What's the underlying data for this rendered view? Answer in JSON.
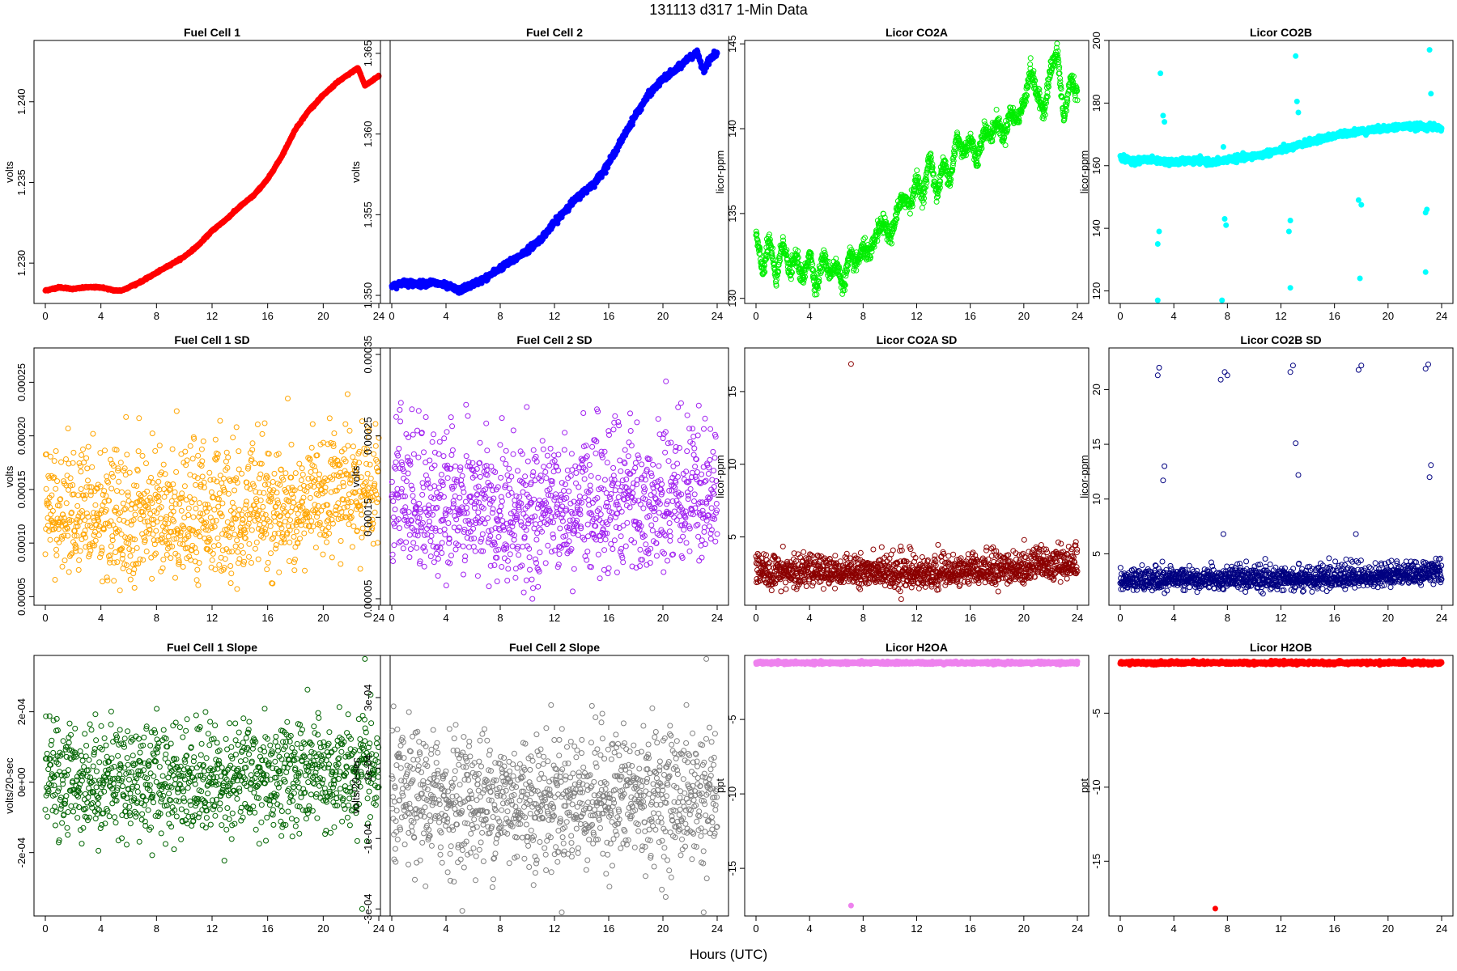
{
  "figure": {
    "title": "131113   d317   1-Min Data",
    "xlabel": "Hours (UTC)"
  },
  "chart_data": [
    {
      "type": "scatter",
      "title": "Fuel Cell 1",
      "ylabel": "volts",
      "color": "#ff0000",
      "filled": true,
      "xlim": [
        0,
        24
      ],
      "xticks": [
        0,
        4,
        8,
        12,
        16,
        20,
        24
      ],
      "ylim": [
        1.2275,
        1.2438
      ],
      "yticks": [
        1.23,
        1.235,
        1.24
      ],
      "ytick_labels": [
        "1.230",
        "1.235",
        "1.240"
      ],
      "series": [
        {
          "x": [
            0,
            1,
            2,
            3,
            4,
            5,
            5.5,
            6,
            7,
            8,
            9,
            10,
            11,
            12,
            13,
            14,
            15,
            16,
            17,
            18,
            19,
            20,
            21,
            22,
            22.5,
            23,
            23.5,
            24
          ],
          "y": [
            1.2283,
            1.2285,
            1.2284,
            1.2285,
            1.2285,
            1.2283,
            1.2283,
            1.2285,
            1.2289,
            1.2294,
            1.2299,
            1.2304,
            1.2311,
            1.232,
            1.2327,
            1.2335,
            1.2342,
            1.2352,
            1.2366,
            1.2383,
            1.2395,
            1.2404,
            1.2412,
            1.2418,
            1.2421,
            1.241,
            1.2413,
            1.2416
          ]
        }
      ]
    },
    {
      "type": "scatter",
      "title": "Fuel Cell 2",
      "ylabel": "volts",
      "color": "#0000ff",
      "filled": true,
      "xlim": [
        0,
        24
      ],
      "xticks": [
        0,
        4,
        8,
        12,
        16,
        20,
        24
      ],
      "ylim": [
        1.3495,
        1.3658
      ],
      "yticks": [
        1.35,
        1.355,
        1.36,
        1.365
      ],
      "ytick_labels": [
        "1.350",
        "1.355",
        "1.360",
        "1.365"
      ],
      "series": [
        {
          "x": [
            0,
            1,
            2,
            3,
            4,
            5,
            6,
            7,
            8,
            9,
            10,
            11,
            12,
            13,
            14,
            15,
            16,
            17,
            18,
            19,
            20,
            21,
            22,
            22.5,
            23,
            23.5,
            24
          ],
          "y": [
            1.3506,
            1.3508,
            1.3507,
            1.3508,
            1.3506,
            1.3503,
            1.3507,
            1.3511,
            1.3517,
            1.3522,
            1.3528,
            1.3535,
            1.3545,
            1.3555,
            1.3563,
            1.357,
            1.3582,
            1.3597,
            1.3612,
            1.3625,
            1.3634,
            1.364,
            1.3648,
            1.365,
            1.364,
            1.3647,
            1.365
          ]
        }
      ]
    },
    {
      "type": "scatter",
      "title": "Licor CO2A",
      "ylabel": "licor-ppm",
      "color": "#00ee00",
      "filled": false,
      "xlim": [
        0,
        24
      ],
      "xticks": [
        0,
        4,
        8,
        12,
        16,
        20,
        24
      ],
      "ylim": [
        129.7,
        145.2
      ],
      "yticks": [
        130,
        135,
        140,
        145
      ],
      "ytick_labels": [
        "130",
        "135",
        "140",
        "145"
      ],
      "series": [
        {
          "x": [
            0,
            0.5,
            1,
            1.5,
            2,
            2.5,
            3,
            3.5,
            4,
            4.5,
            5,
            5.5,
            6,
            6.5,
            7,
            7.5,
            8,
            8.5,
            9,
            9.5,
            10,
            10.5,
            11,
            11.5,
            12,
            12.5,
            13,
            13.5,
            14,
            14.5,
            15,
            15.5,
            16,
            16.5,
            17,
            17.5,
            18,
            18.5,
            19,
            19.5,
            20,
            20.5,
            21,
            21.5,
            22,
            22.5,
            23,
            23.5,
            24
          ],
          "y": [
            133.8,
            131.5,
            133.5,
            131.0,
            133.5,
            131.5,
            132.5,
            131.0,
            132.8,
            130.5,
            132.5,
            131.5,
            132.0,
            130.7,
            132.5,
            132.0,
            133.0,
            132.5,
            133.8,
            134.5,
            133.5,
            135.0,
            136.0,
            135.5,
            137.0,
            136.0,
            138.5,
            136.0,
            138.0,
            137.0,
            139.5,
            138.5,
            139.5,
            138.0,
            140.0,
            139.5,
            140.5,
            139.5,
            141.0,
            140.5,
            141.5,
            143.5,
            142.0,
            141.0,
            143.5,
            144.5,
            140.5,
            143.0,
            142.0
          ]
        }
      ]
    },
    {
      "type": "scatter",
      "title": "Licor CO2B",
      "ylabel": "licor-ppm",
      "color": "#00ffff",
      "filled": true,
      "xlim": [
        0,
        24
      ],
      "xticks": [
        0,
        4,
        8,
        12,
        16,
        20,
        24
      ],
      "ylim": [
        116,
        200
      ],
      "yticks": [
        120,
        140,
        160,
        180,
        200
      ],
      "ytick_labels": [
        "120",
        "140",
        "160",
        "180",
        "200"
      ],
      "series": [
        {
          "x": [
            0,
            1,
            2,
            3,
            4,
            5,
            6,
            7,
            8,
            9,
            10,
            11,
            12,
            13,
            14,
            15,
            16,
            17,
            18,
            19,
            20,
            21,
            22,
            23,
            24
          ],
          "y": [
            162.5,
            161.5,
            162.0,
            161.5,
            161.0,
            161.5,
            161.5,
            161.0,
            162.0,
            162.5,
            163.0,
            164.0,
            165.0,
            166.0,
            167.5,
            168.5,
            169.5,
            170.5,
            171.0,
            171.5,
            172.0,
            172.5,
            172.5,
            172.5,
            172.0
          ]
        }
      ],
      "outliers": [
        {
          "x": 2.8,
          "y": 135.0
        },
        {
          "x": 2.9,
          "y": 139.0
        },
        {
          "x": 2.8,
          "y": 117.0
        },
        {
          "x": 3.0,
          "y": 189.5
        },
        {
          "x": 3.2,
          "y": 176.0
        },
        {
          "x": 3.3,
          "y": 174.0
        },
        {
          "x": 7.6,
          "y": 117.0
        },
        {
          "x": 7.8,
          "y": 143.0
        },
        {
          "x": 7.9,
          "y": 141.0
        },
        {
          "x": 7.7,
          "y": 166.0
        },
        {
          "x": 12.7,
          "y": 121.0
        },
        {
          "x": 12.6,
          "y": 139.0
        },
        {
          "x": 12.7,
          "y": 142.5
        },
        {
          "x": 13.1,
          "y": 195.0
        },
        {
          "x": 13.2,
          "y": 180.5
        },
        {
          "x": 13.3,
          "y": 177.0
        },
        {
          "x": 17.9,
          "y": 124.0
        },
        {
          "x": 17.8,
          "y": 149.0
        },
        {
          "x": 18.0,
          "y": 147.5
        },
        {
          "x": 22.8,
          "y": 126.0
        },
        {
          "x": 22.8,
          "y": 145.0
        },
        {
          "x": 22.9,
          "y": 146.0
        },
        {
          "x": 23.1,
          "y": 197.0
        },
        {
          "x": 23.2,
          "y": 183.0
        }
      ]
    },
    {
      "type": "scatter",
      "title": "Fuel Cell 1 SD",
      "ylabel": "volts",
      "color": "#ffa500",
      "filled": false,
      "xlim": [
        0,
        24
      ],
      "xticks": [
        0,
        4,
        8,
        12,
        16,
        20,
        24
      ],
      "ylim": [
        4.2e-05,
        0.000282
      ],
      "yticks": [
        5e-05,
        0.0001,
        0.00015,
        0.0002,
        0.00025
      ],
      "ytick_labels": [
        "0.00005",
        "0.00010",
        "0.00015",
        "0.00020",
        "0.00025"
      ],
      "series": [
        {
          "x": [
            0,
            4,
            8,
            12,
            16,
            20,
            24
          ],
          "y": [
            0.000125,
            0.000122,
            0.000123,
            0.000122,
            0.00013,
            0.000138,
            0.000148
          ]
        }
      ]
    },
    {
      "type": "scatter",
      "title": "Fuel Cell 2 SD",
      "ylabel": "volts",
      "color": "#a020f0",
      "filled": false,
      "xlim": [
        0,
        24
      ],
      "xticks": [
        0,
        4,
        8,
        12,
        16,
        20,
        24
      ],
      "ylim": [
        4.2e-05,
        0.000358
      ],
      "yticks": [
        5e-05,
        0.00015,
        0.00025,
        0.00035
      ],
      "ytick_labels": [
        "0.00005",
        "0.00015",
        "0.00025",
        "0.00035"
      ],
      "series": [
        {
          "x": [
            0,
            4,
            8,
            12,
            16,
            20,
            24
          ],
          "y": [
            0.000165,
            0.00016,
            0.000158,
            0.000155,
            0.00016,
            0.000168,
            0.000175
          ]
        }
      ]
    },
    {
      "type": "scatter",
      "title": "Licor CO2A SD",
      "ylabel": "licor-ppm",
      "color": "#8b0000",
      "filled": false,
      "xlim": [
        0,
        24
      ],
      "xticks": [
        0,
        4,
        8,
        12,
        16,
        20,
        24
      ],
      "ylim": [
        0.3,
        18.0
      ],
      "yticks": [
        5,
        10,
        15
      ],
      "ytick_labels": [
        "5",
        "10",
        "15"
      ],
      "series": [
        {
          "x": [
            0,
            4,
            8,
            12,
            16,
            20,
            24
          ],
          "y": [
            2.5,
            2.6,
            2.6,
            2.4,
            2.7,
            2.8,
            3.2
          ]
        }
      ],
      "outliers": [
        {
          "x": 7.1,
          "y": 16.9
        }
      ]
    },
    {
      "type": "scatter",
      "title": "Licor CO2B SD",
      "ylabel": "licor-ppm",
      "color": "#000080",
      "filled": false,
      "xlim": [
        0,
        24
      ],
      "xticks": [
        0,
        4,
        8,
        12,
        16,
        20,
        24
      ],
      "ylim": [
        0.3,
        23.8
      ],
      "yticks": [
        5,
        10,
        15,
        20
      ],
      "ytick_labels": [
        "5",
        "10",
        "15",
        "20"
      ],
      "series": [
        {
          "x": [
            0,
            4,
            8,
            12,
            16,
            20,
            24
          ],
          "y": [
            2.5,
            2.6,
            2.7,
            2.6,
            2.8,
            2.9,
            3.3
          ]
        }
      ],
      "outliers": [
        {
          "x": 2.8,
          "y": 21.3
        },
        {
          "x": 2.9,
          "y": 22.0
        },
        {
          "x": 3.2,
          "y": 11.7
        },
        {
          "x": 3.3,
          "y": 13.0
        },
        {
          "x": 7.5,
          "y": 20.9
        },
        {
          "x": 7.8,
          "y": 21.6
        },
        {
          "x": 8.0,
          "y": 21.3
        },
        {
          "x": 7.7,
          "y": 6.8
        },
        {
          "x": 12.7,
          "y": 21.6
        },
        {
          "x": 12.9,
          "y": 22.2
        },
        {
          "x": 13.1,
          "y": 15.1
        },
        {
          "x": 13.3,
          "y": 12.2
        },
        {
          "x": 17.8,
          "y": 21.8
        },
        {
          "x": 18.0,
          "y": 22.2
        },
        {
          "x": 17.6,
          "y": 6.8
        },
        {
          "x": 22.8,
          "y": 21.9
        },
        {
          "x": 23.0,
          "y": 22.3
        },
        {
          "x": 23.1,
          "y": 12.0
        },
        {
          "x": 23.2,
          "y": 13.1
        }
      ]
    },
    {
      "type": "scatter",
      "title": "Fuel Cell 1 Slope",
      "ylabel": "volts/20-sec",
      "color": "#006400",
      "filled": false,
      "xlim": [
        0,
        24
      ],
      "xticks": [
        0,
        4,
        8,
        12,
        16,
        20,
        24
      ],
      "ylim": [
        -0.00038,
        0.00036
      ],
      "yticks": [
        -0.0002,
        0,
        0.0002
      ],
      "ytick_labels": [
        "-2e-04",
        "0e+00",
        "2e-04"
      ],
      "series": [
        {
          "x": [
            0,
            4,
            8,
            12,
            16,
            20,
            24
          ],
          "y": [
            1e-05,
            1e-05,
            1e-05,
            1e-05,
            2e-05,
            2e-05,
            2e-05
          ]
        }
      ],
      "outliers": [
        {
          "x": 22.8,
          "y": -0.00036
        },
        {
          "x": 23.0,
          "y": 0.00035
        }
      ]
    },
    {
      "type": "scatter",
      "title": "Fuel Cell 2 Slope",
      "ylabel": "volts/20-sec",
      "color": "#808080",
      "filled": false,
      "xlim": [
        0,
        24
      ],
      "xticks": [
        0,
        4,
        8,
        12,
        16,
        20,
        24
      ],
      "ylim": [
        -0.00032,
        0.00042
      ],
      "yticks": [
        -0.0003,
        -0.0001,
        0.0001,
        0.0003
      ],
      "ytick_labels": [
        "-3e-04",
        "-1e-04",
        "1e-04",
        "3e-04"
      ],
      "series": [
        {
          "x": [
            0,
            4,
            8,
            12,
            16,
            20,
            24
          ],
          "y": [
            1e-05,
            1e-05,
            1e-05,
            1e-05,
            2e-05,
            2e-05,
            2e-05
          ]
        }
      ],
      "outliers": [
        {
          "x": 23.0,
          "y": -0.00031
        },
        {
          "x": 23.2,
          "y": 0.00041
        }
      ]
    },
    {
      "type": "scatter",
      "title": "Licor H2OA",
      "ylabel": "ppt",
      "color": "#ee82ee",
      "filled": true,
      "xlim": [
        0,
        24
      ],
      "xticks": [
        0,
        4,
        8,
        12,
        16,
        20,
        24
      ],
      "ylim": [
        -18.2,
        -0.7
      ],
      "yticks": [
        -15,
        -10,
        -5
      ],
      "ytick_labels": [
        "-15",
        "-10",
        "-5"
      ],
      "series": [
        {
          "x": [
            0,
            4,
            8,
            12,
            16,
            20,
            24
          ],
          "y": [
            -1.2,
            -1.2,
            -1.2,
            -1.2,
            -1.2,
            -1.2,
            -1.2
          ]
        }
      ],
      "outliers": [
        {
          "x": 7.1,
          "y": -17.5
        }
      ]
    },
    {
      "type": "scatter",
      "title": "Licor H2OB",
      "ylabel": "ppt",
      "color": "#ff0000",
      "filled": true,
      "xlim": [
        0,
        24
      ],
      "xticks": [
        0,
        4,
        8,
        12,
        16,
        20,
        24
      ],
      "ylim": [
        -18.7,
        -1.1
      ],
      "yticks": [
        -15,
        -10,
        -5
      ],
      "ytick_labels": [
        "-15",
        "-10",
        "-5"
      ],
      "series": [
        {
          "x": [
            0,
            4,
            8,
            12,
            16,
            20,
            24
          ],
          "y": [
            -1.6,
            -1.6,
            -1.6,
            -1.6,
            -1.6,
            -1.6,
            -1.6
          ]
        }
      ],
      "outliers": [
        {
          "x": 7.1,
          "y": -18.2
        }
      ]
    }
  ]
}
